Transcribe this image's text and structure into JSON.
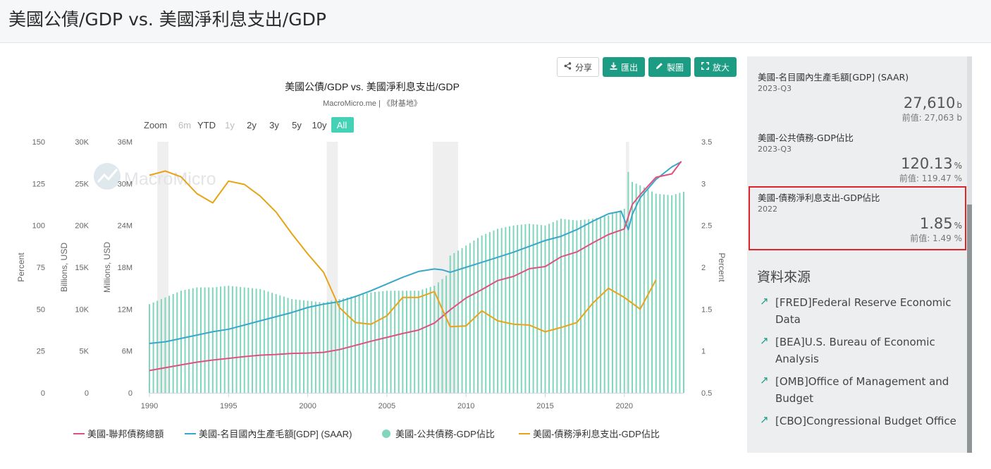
{
  "page": {
    "title": "美國公債/GDP vs. 美國淨利息支出/GDP"
  },
  "toolbar": {
    "share": "分享",
    "export": "匯出",
    "draw": "製圖",
    "enlarge": "放大"
  },
  "zoom": {
    "label": "Zoom",
    "options": [
      "6m",
      "YTD",
      "1y",
      "2y",
      "3y",
      "5y",
      "10y",
      "All"
    ],
    "disabled": [
      "6m",
      "1y"
    ],
    "active": "All"
  },
  "watermark": "MacroMicro",
  "chart_data": {
    "type": "bar+line",
    "title": "美國公債/GDP vs. 美國淨利息支出/GDP",
    "subtitle": "MacroMicro.me | 《財基地》",
    "axes": {
      "percent_left": {
        "label": "Percent",
        "ticks": [
          0,
          25,
          50,
          75,
          100,
          125,
          150
        ],
        "tick_labels": [
          "0",
          "25",
          "50",
          "75",
          "100",
          "125",
          "150"
        ],
        "range": [
          0,
          150
        ]
      },
      "billions_usd": {
        "label": "Billions, USD",
        "tick_labels": [
          "0",
          "5K",
          "10K",
          "15K",
          "20K",
          "25K",
          "30K"
        ],
        "range": [
          0,
          30000
        ]
      },
      "millions_usd": {
        "label": "Millions, USD",
        "tick_labels": [
          "0",
          "6M",
          "12M",
          "18M",
          "24M",
          "30M",
          "36M"
        ],
        "range": [
          0,
          36000000
        ]
      },
      "percent_right": {
        "label": "Percent",
        "tick_labels": [
          "0.5",
          "1",
          "1.5",
          "2",
          "2.5",
          "3",
          "3.5"
        ],
        "range": [
          0.5,
          3.5
        ]
      },
      "x": {
        "tick_labels": [
          "1990",
          "1995",
          "2000",
          "2005",
          "2010",
          "2015",
          "2020"
        ],
        "range": [
          1990,
          2023.75
        ]
      }
    },
    "recessions": [
      [
        1990.5,
        1991.2
      ],
      [
        2001.2,
        2001.9
      ],
      [
        2007.9,
        2009.5
      ],
      [
        2020.1,
        2020.3
      ]
    ],
    "series": [
      {
        "name": "美國-聯邦債務總額",
        "color": "#e0507e",
        "axis": "millions_usd",
        "type": "line",
        "x": [
          1990,
          1991,
          1992,
          1993,
          1994,
          1995,
          1996,
          1997,
          1998,
          1999,
          2000,
          2001,
          2002,
          2003,
          2004,
          2005,
          2006,
          2007,
          2008,
          2009,
          2010,
          2011,
          2012,
          2013,
          2014,
          2015,
          2016,
          2017,
          2018,
          2019,
          2020,
          2020.5,
          2021,
          2022,
          2023,
          2023.6
        ],
        "values": [
          3200000,
          3600000,
          4000000,
          4400000,
          4700000,
          4950000,
          5200000,
          5400000,
          5500000,
          5650000,
          5700000,
          5800000,
          6200000,
          6800000,
          7400000,
          7950000,
          8500000,
          9000000,
          10000000,
          11900000,
          13600000,
          14800000,
          16100000,
          16700000,
          17800000,
          18100000,
          19500000,
          20200000,
          21500000,
          22700000,
          23500000,
          27000000,
          28400000,
          30900000,
          31400000,
          33200000
        ]
      },
      {
        "name": "美國-名目國內生產毛額[GDP] (SAAR)",
        "color": "#3aa7c9",
        "axis": "billions_usd",
        "type": "line",
        "x": [
          1990,
          1991,
          1992,
          1993,
          1994,
          1995,
          1996,
          1997,
          1998,
          1999,
          2000,
          2001,
          2002,
          2003,
          2004,
          2005,
          2006,
          2007,
          2008,
          2008.5,
          2009,
          2010,
          2011,
          2012,
          2013,
          2014,
          2015,
          2016,
          2017,
          2018,
          2019,
          2019.8,
          2020.25,
          2020.5,
          2021,
          2022,
          2023,
          2023.6
        ],
        "values": [
          5900,
          6100,
          6500,
          6900,
          7300,
          7600,
          8100,
          8600,
          9100,
          9600,
          10200,
          10600,
          10900,
          11500,
          12200,
          13000,
          13800,
          14500,
          14800,
          14700,
          14400,
          15000,
          15600,
          16200,
          16800,
          17500,
          18200,
          18700,
          19500,
          20500,
          21400,
          21700,
          19500,
          21300,
          23300,
          25500,
          27000,
          27610
        ]
      },
      {
        "name": "美國-公共債務-GDP佔比",
        "color": "#7fd6bd",
        "axis": "percent_left",
        "type": "column",
        "x": [
          1990,
          1991,
          1992,
          1993,
          1994,
          1995,
          1996,
          1997,
          1998,
          1999,
          2000,
          2001,
          2002,
          2003,
          2004,
          2005,
          2006,
          2007,
          2008,
          2008.75,
          2009,
          2010,
          2011,
          2012,
          2013,
          2014,
          2015,
          2016,
          2017,
          2018,
          2019,
          2020,
          2020.25,
          2020.5,
          2021,
          2022,
          2023,
          2023.75
        ],
        "values": [
          53,
          57,
          61,
          63,
          63,
          64,
          63,
          62,
          59,
          56,
          55,
          54,
          56,
          58,
          60,
          61,
          61,
          61,
          64,
          70,
          82,
          88,
          94,
          98,
          100,
          101,
          100,
          104,
          103,
          104,
          106,
          110,
          132,
          126,
          124,
          119,
          118,
          120.13
        ]
      },
      {
        "name": "美國-債務淨利息支出-GDP佔比",
        "color": "#e8a317",
        "axis": "percent_right",
        "type": "line",
        "x": [
          1990,
          1991,
          1992,
          1993,
          1994,
          1995,
          1996,
          1997,
          1998,
          1999,
          2000,
          2001,
          2002,
          2003,
          2004,
          2005,
          2006,
          2007,
          2008,
          2009,
          2010,
          2011,
          2012,
          2013,
          2014,
          2015,
          2016,
          2017,
          2018,
          2019,
          2020,
          2021,
          2022
        ],
        "values": [
          3.1,
          3.15,
          3.08,
          2.88,
          2.77,
          3.03,
          2.99,
          2.85,
          2.66,
          2.4,
          2.16,
          1.94,
          1.52,
          1.34,
          1.32,
          1.42,
          1.64,
          1.64,
          1.71,
          1.29,
          1.3,
          1.48,
          1.36,
          1.32,
          1.31,
          1.23,
          1.28,
          1.34,
          1.57,
          1.75,
          1.64,
          1.5,
          1.85
        ]
      }
    ],
    "legend": {
      "placement": "bottom"
    }
  },
  "sidebar": {
    "metrics": [
      {
        "name": "美國-名目國內生產毛額[GDP] (SAAR)",
        "date": "2023-Q3",
        "value": "27,610",
        "unit": "b",
        "prev": "前值: 27,063 b"
      },
      {
        "name": "美國-公共債務-GDP佔比",
        "date": "2023-Q3",
        "value": "120.13",
        "unit": "%",
        "prev": "前值: 119.47 %"
      },
      {
        "name": "美國-債務淨利息支出-GDP佔比",
        "date": "2022",
        "value": "1.85",
        "unit": "%",
        "prev": "前值: 1.49 %"
      }
    ],
    "sources_title": "資料來源",
    "sources": [
      "[FRED]Federal Reserve Economic Data",
      "[BEA]U.S. Bureau of Economic Analysis",
      "[OMB]Office of Management and Budget",
      "[CBO]Congressional Budget Office"
    ]
  }
}
